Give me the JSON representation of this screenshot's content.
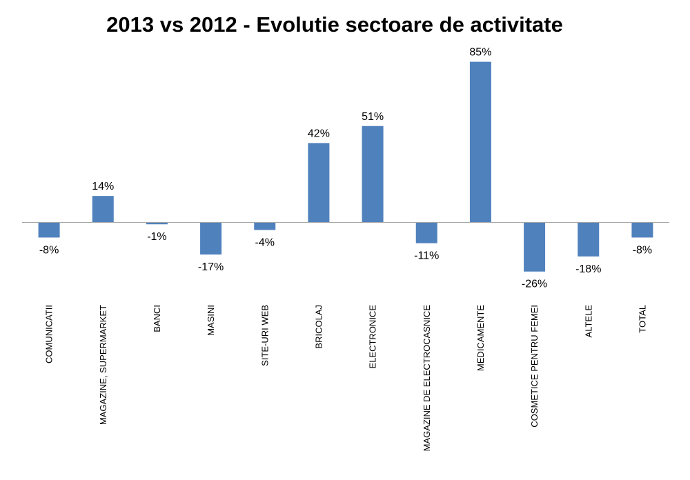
{
  "chart_data": {
    "type": "bar",
    "title": "2013 vs 2012  - Evolutie sectoare de activitate",
    "xlabel": "",
    "ylabel": "",
    "categories": [
      "COMUNICATII",
      "MAGAZINE, SUPERMARKET",
      "BANCI",
      "MASINI",
      "SITE-URI WEB",
      "BRICOLAJ",
      "ELECTRONICE",
      "MAGAZINE DE ELECTROCASNICE",
      "MEDICAMENTE",
      "COSMETICE PENTRU FEMEI",
      "ALTELE",
      "TOTAL"
    ],
    "values": [
      -8,
      14,
      -1,
      -17,
      -4,
      42,
      51,
      -11,
      85,
      -26,
      -18,
      -8
    ],
    "value_labels": [
      "-8%",
      "14%",
      "-1%",
      "-17%",
      "-4%",
      "42%",
      "51%",
      "-11%",
      "85%",
      "-26%",
      "-18%",
      "-8%"
    ],
    "ylim": [
      -40,
      90
    ],
    "grid": false,
    "legend": "none",
    "colors": {
      "bar": "#4f81bd",
      "axis": "#a6a6a6",
      "text": "#000000"
    }
  }
}
